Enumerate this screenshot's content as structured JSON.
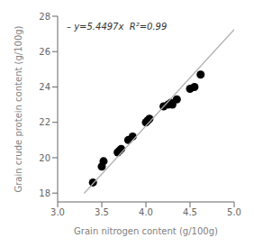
{
  "chart_data": {
    "type": "scatter",
    "xlabel": "Grain nitrogen content (g/100g)",
    "ylabel": "Grain crude protein content (g/100g)",
    "annotation": "– y=5.4497x  R²=0.99",
    "grid": false,
    "xlim": [
      3.0,
      5.0
    ],
    "ylim": [
      17.5,
      28
    ],
    "xticks": [
      {
        "value": 3.0,
        "label": "3.0"
      },
      3.5,
      {
        "value": 4.0,
        "label": "4.0"
      },
      4.5,
      {
        "value": 5.0,
        "label": "5.0"
      }
    ],
    "yticks": [
      18,
      20,
      22,
      24,
      26,
      28
    ],
    "series": [
      {
        "type": "scatter",
        "color": "#000000",
        "x": [
          3.4,
          3.5,
          3.52,
          3.68,
          3.7,
          3.72,
          3.8,
          3.85,
          4.0,
          4.02,
          4.04,
          4.2,
          4.25,
          4.28,
          4.3,
          4.35,
          4.5,
          4.55,
          4.62
        ],
        "values": [
          18.6,
          19.5,
          19.8,
          20.3,
          20.4,
          20.5,
          21.0,
          21.2,
          22.0,
          22.1,
          22.2,
          22.9,
          23.0,
          23.1,
          23.0,
          23.3,
          23.9,
          24.0,
          24.7
        ]
      },
      {
        "type": "line",
        "color": "#b0b0b0",
        "x": [
          3.3,
          5.0
        ],
        "values": [
          17.98401,
          27.2485
        ]
      }
    ]
  }
}
